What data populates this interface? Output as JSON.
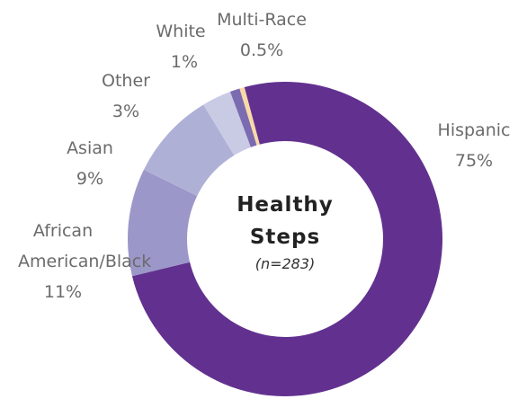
{
  "chart_data": {
    "type": "donut",
    "title": "Healthy Steps",
    "subtitle": "(n=283)",
    "categories": [
      "Hispanic",
      "African American/Black",
      "Asian",
      "Other",
      "White",
      "Multi-Race"
    ],
    "values": [
      75,
      11,
      9,
      3,
      1,
      0.5
    ],
    "value_labels": [
      "75%",
      "11%",
      "9%",
      "3%",
      "1%",
      "0.5%"
    ],
    "colors": [
      "#62318f",
      "#9b97c8",
      "#afb0d6",
      "#c9cae4",
      "#7b6bb0",
      "#f9d9a6"
    ]
  }
}
